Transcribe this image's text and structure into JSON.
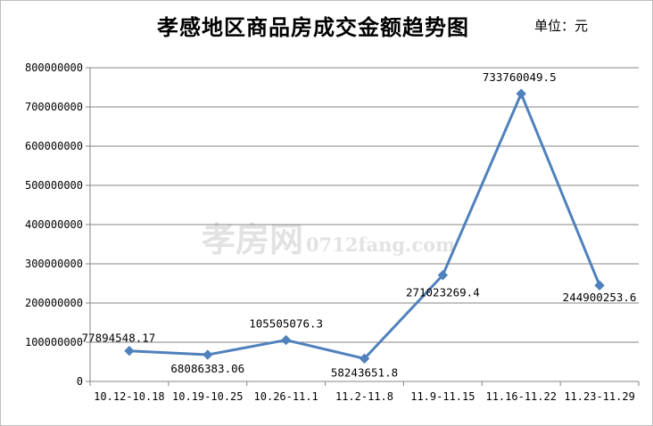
{
  "title": "孝感地区商品房成交金额趋势图",
  "unit": "单位：元",
  "watermark": {
    "cn": "孝房网",
    "url": "0712fang.com"
  },
  "colors": {
    "series": "#4f81bd",
    "grid": "#868686",
    "axis": "#868686"
  },
  "chart_data": {
    "type": "line",
    "title": "孝感地区商品房成交金额趋势图",
    "xlabel": "",
    "ylabel": "",
    "ylim": [
      0,
      800000000
    ],
    "yticks": [
      0,
      100000000,
      200000000,
      300000000,
      400000000,
      500000000,
      600000000,
      700000000,
      800000000
    ],
    "ytick_labels": [
      "0",
      "100000000",
      "200000000",
      "300000000",
      "400000000",
      "500000000",
      "600000000",
      "700000000",
      "800000000"
    ],
    "grid": true,
    "legend": "none",
    "categories": [
      "10.12-10.18",
      "10.19-10.25",
      "10.26-11.1",
      "11.2-11.8",
      "11.9-11.15",
      "11.16-11.22",
      "11.23-11.29"
    ],
    "values": [
      77894548.17,
      68086383.06,
      105505076.3,
      58243651.8,
      271023269.4,
      733760049.5,
      244900253.6
    ],
    "value_labels": [
      "77894548.17",
      "68086383.06",
      "105505076.3",
      "58243651.8",
      "271023269.4",
      "733760049.5",
      "244900253.6"
    ],
    "marker": "diamond"
  }
}
